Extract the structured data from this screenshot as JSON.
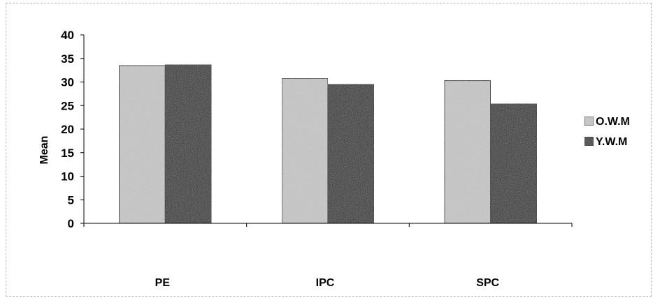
{
  "chart_data": {
    "type": "bar",
    "title": "",
    "xlabel": "",
    "ylabel": "Mean",
    "categories": [
      "PE",
      "IPC",
      "SPC"
    ],
    "series": [
      {
        "name": "O.W.M",
        "values": [
          33.5,
          30.8,
          30.3
        ],
        "color": "#c8c8c8"
      },
      {
        "name": "Y.W.M",
        "values": [
          33.7,
          29.5,
          25.4
        ],
        "color": "#262626"
      }
    ],
    "ylim": [
      0,
      40
    ],
    "yticks": [
      0,
      5,
      10,
      15,
      20,
      25,
      30,
      35,
      40
    ],
    "grid": false,
    "legend": "right"
  }
}
